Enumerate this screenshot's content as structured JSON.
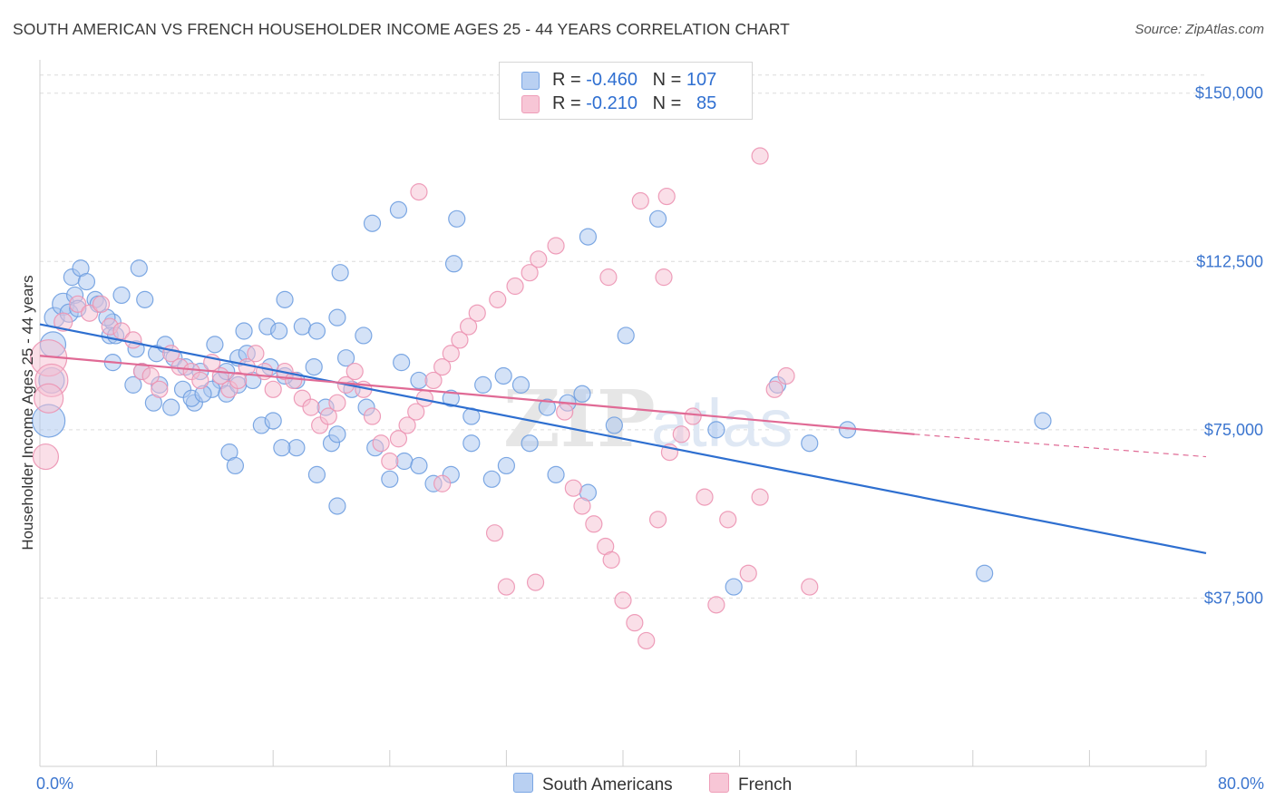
{
  "title": "SOUTH AMERICAN VS FRENCH HOUSEHOLDER INCOME AGES 25 - 44 YEARS CORRELATION CHART",
  "source": "Source: ZipAtlas.com",
  "legend": {
    "rows": [
      {
        "r_label": "R = ",
        "r_value": "-0.460",
        "n_label": "N = ",
        "n_value": "107"
      },
      {
        "r_label": "R = ",
        "r_value": "-0.210",
        "n_label": "N = ",
        "n_value": "85"
      }
    ]
  },
  "colors": {
    "south_fill": "#a9c6ef",
    "south_stroke": "#6f9fe0",
    "south_line": "#2e6fd0",
    "french_fill": "#f6bfd1",
    "french_stroke": "#ec94b2",
    "french_line": "#e06a95",
    "tick_label": "#3b75cf"
  },
  "watermark": {
    "zip": "ZIP",
    "atlas": "atlas"
  },
  "chart_data": {
    "type": "scatter",
    "xlabel": "",
    "ylabel": "Householder Income Ages 25 - 44 years",
    "xlim": [
      0,
      80
    ],
    "ylim": [
      0,
      155000
    ],
    "x_tick_labels": [
      {
        "x": 0,
        "label": "0.0%"
      },
      {
        "x": 80,
        "label": "80.0%"
      }
    ],
    "y_ticks": [
      37500,
      75000,
      112500,
      150000
    ],
    "y_tick_labels": [
      "$37,500",
      "$75,000",
      "$112,500",
      "$150,000"
    ],
    "grid": true,
    "legend_position": "top-center",
    "series": [
      {
        "name": "South Americans",
        "trend": {
          "x0": 0,
          "y0": 98500,
          "x1": 80,
          "y1": 47500
        },
        "points": [
          [
            0.6,
            77000,
            18
          ],
          [
            0.8,
            86000,
            14
          ],
          [
            0.9,
            94000,
            14
          ],
          [
            1.0,
            100000,
            11
          ],
          [
            1.6,
            103000,
            12
          ],
          [
            2.0,
            101000,
            10
          ],
          [
            2.2,
            109000,
            9
          ],
          [
            2.4,
            105000,
            9
          ],
          [
            2.8,
            111000,
            9
          ],
          [
            2.6,
            102000,
            9
          ],
          [
            3.2,
            108000,
            9
          ],
          [
            3.8,
            104000,
            9
          ],
          [
            4.0,
            103000,
            9
          ],
          [
            5.0,
            99000,
            9
          ],
          [
            5.6,
            105000,
            9
          ],
          [
            4.8,
            96000,
            9
          ],
          [
            6.8,
            111000,
            9
          ],
          [
            7.2,
            104000,
            9
          ],
          [
            5.2,
            96000,
            9
          ],
          [
            4.6,
            100000,
            9
          ],
          [
            5.0,
            90000,
            9
          ],
          [
            6.6,
            93000,
            9
          ],
          [
            7.0,
            88000,
            9
          ],
          [
            8.0,
            92000,
            9
          ],
          [
            8.6,
            94000,
            9
          ],
          [
            9.2,
            91000,
            9
          ],
          [
            10.0,
            89000,
            9
          ],
          [
            11.0,
            88000,
            9
          ],
          [
            9.8,
            84000,
            9
          ],
          [
            8.2,
            85000,
            9
          ],
          [
            9.0,
            80000,
            9
          ],
          [
            10.6,
            81000,
            9
          ],
          [
            12.4,
            86000,
            9
          ],
          [
            11.8,
            84000,
            9
          ],
          [
            12.8,
            88000,
            9
          ],
          [
            13.6,
            91000,
            9
          ],
          [
            14.2,
            92000,
            9
          ],
          [
            15.6,
            98000,
            9
          ],
          [
            16.4,
            97000,
            9
          ],
          [
            16.8,
            104000,
            9
          ],
          [
            18.0,
            98000,
            9
          ],
          [
            19.0,
            97000,
            9
          ],
          [
            20.4,
            100000,
            9
          ],
          [
            20.6,
            110000,
            9
          ],
          [
            22.8,
            121000,
            9
          ],
          [
            24.6,
            124000,
            9
          ],
          [
            28.4,
            112000,
            9
          ],
          [
            28.6,
            122000,
            9
          ],
          [
            14.0,
            97000,
            9
          ],
          [
            12.8,
            83000,
            9
          ],
          [
            13.6,
            85000,
            9
          ],
          [
            15.2,
            76000,
            9
          ],
          [
            16.0,
            77000,
            9
          ],
          [
            17.6,
            71000,
            9
          ],
          [
            19.0,
            65000,
            9
          ],
          [
            20.0,
            72000,
            9
          ],
          [
            20.4,
            74000,
            9
          ],
          [
            21.4,
            84000,
            9
          ],
          [
            22.4,
            80000,
            9
          ],
          [
            23.0,
            71000,
            9
          ],
          [
            24.0,
            64000,
            9
          ],
          [
            25.0,
            68000,
            9
          ],
          [
            26.0,
            67000,
            9
          ],
          [
            27.0,
            63000,
            9
          ],
          [
            28.2,
            65000,
            9
          ],
          [
            29.6,
            72000,
            9
          ],
          [
            31.0,
            64000,
            9
          ],
          [
            32.0,
            67000,
            9
          ],
          [
            33.6,
            72000,
            9
          ],
          [
            35.4,
            65000,
            9
          ],
          [
            30.4,
            85000,
            9
          ],
          [
            31.8,
            87000,
            9
          ],
          [
            33.0,
            85000,
            9
          ],
          [
            34.8,
            80000,
            9
          ],
          [
            36.2,
            81000,
            9
          ],
          [
            37.6,
            61000,
            9
          ],
          [
            37.2,
            83000,
            9
          ],
          [
            39.4,
            76000,
            9
          ],
          [
            40.2,
            96000,
            9
          ],
          [
            46.4,
            75000,
            9
          ],
          [
            42.4,
            122000,
            9
          ],
          [
            47.6,
            40000,
            9
          ],
          [
            37.6,
            118000,
            9
          ],
          [
            13.0,
            70000,
            9
          ],
          [
            13.4,
            67000,
            9
          ],
          [
            16.6,
            71000,
            9
          ],
          [
            20.4,
            58000,
            9
          ],
          [
            14.6,
            86000,
            9
          ],
          [
            17.6,
            86000,
            9
          ],
          [
            6.4,
            85000,
            9
          ],
          [
            7.8,
            81000,
            9
          ],
          [
            10.4,
            82000,
            9
          ],
          [
            11.2,
            83000,
            9
          ],
          [
            12.0,
            94000,
            9
          ],
          [
            15.8,
            89000,
            9
          ],
          [
            16.8,
            87000,
            9
          ],
          [
            18.8,
            89000,
            9
          ],
          [
            19.6,
            80000,
            9
          ],
          [
            21.0,
            91000,
            9
          ],
          [
            22.2,
            96000,
            9
          ],
          [
            24.8,
            90000,
            9
          ],
          [
            26.0,
            86000,
            9
          ],
          [
            28.2,
            82000,
            9
          ],
          [
            29.6,
            78000,
            9
          ],
          [
            55.4,
            75000,
            9
          ],
          [
            52.8,
            72000,
            9
          ],
          [
            68.8,
            77000,
            9
          ],
          [
            64.8,
            43000,
            9
          ],
          [
            50.6,
            85000,
            9
          ]
        ]
      },
      {
        "name": "French",
        "trend": {
          "x0": 0,
          "y0": 91500,
          "x1": 60,
          "y1": 74000,
          "x_dash_end": 80,
          "y_dash_end": 69000
        },
        "points": [
          [
            0.6,
            91000,
            20
          ],
          [
            0.8,
            86000,
            18
          ],
          [
            0.6,
            82000,
            16
          ],
          [
            0.4,
            69000,
            14
          ],
          [
            1.6,
            99000,
            10
          ],
          [
            2.6,
            103000,
            9
          ],
          [
            3.4,
            101000,
            9
          ],
          [
            4.2,
            103000,
            9
          ],
          [
            4.8,
            98000,
            9
          ],
          [
            5.6,
            97000,
            9
          ],
          [
            6.4,
            95000,
            9
          ],
          [
            7.0,
            88000,
            9
          ],
          [
            7.6,
            87000,
            9
          ],
          [
            8.2,
            84000,
            9
          ],
          [
            9.0,
            92000,
            9
          ],
          [
            9.6,
            89000,
            9
          ],
          [
            10.4,
            88000,
            9
          ],
          [
            11.0,
            86000,
            9
          ],
          [
            11.8,
            90000,
            9
          ],
          [
            12.4,
            87000,
            9
          ],
          [
            13.0,
            84000,
            9
          ],
          [
            13.6,
            86000,
            9
          ],
          [
            14.2,
            89000,
            9
          ],
          [
            14.8,
            92000,
            9
          ],
          [
            15.4,
            88000,
            9
          ],
          [
            16.0,
            84000,
            9
          ],
          [
            16.8,
            88000,
            9
          ],
          [
            17.4,
            86000,
            9
          ],
          [
            18.0,
            82000,
            9
          ],
          [
            18.6,
            80000,
            9
          ],
          [
            19.2,
            76000,
            9
          ],
          [
            19.8,
            78000,
            9
          ],
          [
            20.4,
            81000,
            9
          ],
          [
            21.0,
            85000,
            9
          ],
          [
            21.6,
            88000,
            9
          ],
          [
            22.2,
            84000,
            9
          ],
          [
            22.8,
            78000,
            9
          ],
          [
            23.4,
            72000,
            9
          ],
          [
            24.0,
            68000,
            9
          ],
          [
            24.6,
            73000,
            9
          ],
          [
            25.2,
            76000,
            9
          ],
          [
            25.8,
            79000,
            9
          ],
          [
            26.4,
            82000,
            9
          ],
          [
            27.0,
            86000,
            9
          ],
          [
            27.6,
            89000,
            9
          ],
          [
            28.2,
            92000,
            9
          ],
          [
            28.8,
            95000,
            9
          ],
          [
            29.4,
            98000,
            9
          ],
          [
            30.0,
            101000,
            9
          ],
          [
            31.4,
            104000,
            9
          ],
          [
            32.6,
            107000,
            9
          ],
          [
            33.6,
            110000,
            9
          ],
          [
            34.2,
            113000,
            9
          ],
          [
            35.4,
            116000,
            9
          ],
          [
            36.0,
            79000,
            9
          ],
          [
            36.6,
            62000,
            9
          ],
          [
            37.2,
            58000,
            9
          ],
          [
            38.0,
            54000,
            9
          ],
          [
            38.8,
            49000,
            9
          ],
          [
            39.2,
            46000,
            9
          ],
          [
            40.0,
            37000,
            9
          ],
          [
            40.8,
            32000,
            9
          ],
          [
            41.6,
            28000,
            9
          ],
          [
            42.4,
            55000,
            9
          ],
          [
            43.2,
            70000,
            9
          ],
          [
            44.0,
            74000,
            9
          ],
          [
            44.8,
            78000,
            9
          ],
          [
            45.6,
            60000,
            9
          ],
          [
            46.4,
            36000,
            9
          ],
          [
            47.2,
            55000,
            9
          ],
          [
            48.6,
            43000,
            9
          ],
          [
            49.4,
            60000,
            9
          ],
          [
            50.4,
            84000,
            9
          ],
          [
            51.2,
            87000,
            9
          ],
          [
            52.8,
            40000,
            9
          ],
          [
            34.0,
            41000,
            9
          ],
          [
            32.0,
            40000,
            9
          ],
          [
            31.2,
            52000,
            9
          ],
          [
            27.6,
            63000,
            9
          ],
          [
            26.0,
            128000,
            9
          ],
          [
            41.2,
            126000,
            9
          ],
          [
            43.0,
            127000,
            9
          ],
          [
            49.4,
            136000,
            9
          ],
          [
            39.0,
            109000,
            9
          ],
          [
            42.8,
            109000,
            9
          ]
        ]
      }
    ]
  }
}
